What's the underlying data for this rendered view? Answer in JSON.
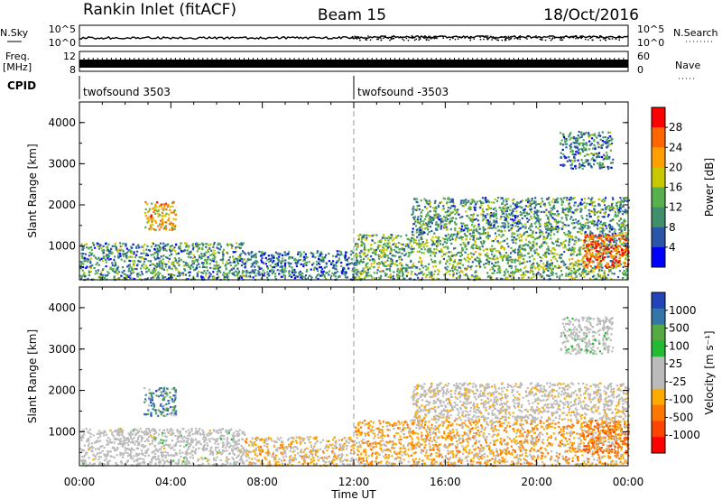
{
  "header": {
    "station": "Rankin Inlet (fitACF)",
    "beam": "Beam 15",
    "date": "18/Oct/2016"
  },
  "strip_labels": {
    "nsky": "N.Sky",
    "freq": "Freq.",
    "freq_unit": "[MHz]",
    "cpid": "CPID",
    "nsearch": "N.Search",
    "nave": "Nave"
  },
  "strip_ticks": {
    "noise_left": [
      "10^5",
      "10^0"
    ],
    "noise_right": [
      "10^5",
      "10^0"
    ],
    "freq_left": [
      "12",
      "8"
    ],
    "nave_right": [
      "60",
      "0"
    ]
  },
  "cpid_modes": [
    {
      "label": "twofsound 3503",
      "start_hour": 0
    },
    {
      "label": "twofsound -3503",
      "start_hour": 12
    }
  ],
  "colors": {
    "power_scale": [
      "#0000ff",
      "#2b55a8",
      "#3f8f6b",
      "#56b04c",
      "#c8c800",
      "#ffa000",
      "#ff6600",
      "#ff0000"
    ],
    "velocity_scale": [
      "#ff0000",
      "#ff4400",
      "#ff7700",
      "#ffaa00",
      "#bbbbbb",
      "#bbbbbb",
      "#22bb33",
      "#55aa44",
      "#3377aa",
      "#2244bb"
    ],
    "ground_scatter": "#bbbbbb"
  },
  "chart_data": [
    {
      "type": "heatmap",
      "name": "power",
      "ylabel": "Slant Range [km]",
      "xlabel": "Time UT",
      "xlim": [
        0,
        24
      ],
      "ylim": [
        180,
        4500
      ],
      "yticks": [
        1000,
        2000,
        3000,
        4000
      ],
      "xtick_labels": [
        "00:00",
        "04:00",
        "08:00",
        "12:00",
        "16:00",
        "20:00",
        "00:00"
      ],
      "colorbar_label": "Power [dB]",
      "colorbar_ticks": [
        "28",
        "24",
        "20",
        "16",
        "12",
        "8",
        "4"
      ],
      "colorbar_range": [
        0,
        30
      ],
      "echo_regions": [
        {
          "t0": 0.0,
          "t1": 7.2,
          "r0": 200,
          "r1": 1100,
          "level": 10
        },
        {
          "t0": 2.8,
          "t1": 4.2,
          "r0": 1400,
          "r1": 2100,
          "level": 20
        },
        {
          "t0": 7.2,
          "t1": 12.0,
          "r0": 200,
          "r1": 900,
          "level": 8
        },
        {
          "t0": 12.0,
          "t1": 24.0,
          "r0": 200,
          "r1": 1300,
          "level": 12
        },
        {
          "t0": 14.5,
          "t1": 24.0,
          "r0": 1300,
          "r1": 2200,
          "level": 10
        },
        {
          "t0": 21.0,
          "t1": 23.3,
          "r0": 2900,
          "r1": 3800,
          "level": 9
        },
        {
          "t0": 22.0,
          "t1": 24.0,
          "r0": 500,
          "r1": 1300,
          "level": 26
        }
      ]
    },
    {
      "type": "heatmap",
      "name": "velocity",
      "ylabel": "Slant Range [km]",
      "xlabel": "Time UT",
      "xlim": [
        0,
        24
      ],
      "ylim": [
        180,
        4500
      ],
      "yticks": [
        1000,
        2000,
        3000,
        4000
      ],
      "xtick_labels": [
        "00:00",
        "04:00",
        "08:00",
        "12:00",
        "16:00",
        "20:00",
        "00:00"
      ],
      "colorbar_label": "Velocity [m s⁻¹]",
      "colorbar_ticks": [
        "1000",
        "500",
        "100",
        "25",
        "-25",
        "-100",
        "-500",
        "-1000"
      ],
      "colorbar_range": [
        -1200,
        1200
      ],
      "echo_regions": [
        {
          "t0": 0.0,
          "t1": 7.2,
          "r0": 200,
          "r1": 1100,
          "level": 0
        },
        {
          "t0": 2.8,
          "t1": 4.2,
          "r0": 1400,
          "r1": 2100,
          "level": 800
        },
        {
          "t0": 7.2,
          "t1": 12.0,
          "r0": 200,
          "r1": 900,
          "level": -300
        },
        {
          "t0": 12.0,
          "t1": 24.0,
          "r0": 200,
          "r1": 1300,
          "level": -400
        },
        {
          "t0": 14.5,
          "t1": 24.0,
          "r0": 1300,
          "r1": 2200,
          "level": -100
        },
        {
          "t0": 21.0,
          "t1": 23.3,
          "r0": 2900,
          "r1": 3800,
          "level": 50
        },
        {
          "t0": 22.0,
          "t1": 24.0,
          "r0": 500,
          "r1": 1300,
          "level": -600
        }
      ]
    }
  ]
}
